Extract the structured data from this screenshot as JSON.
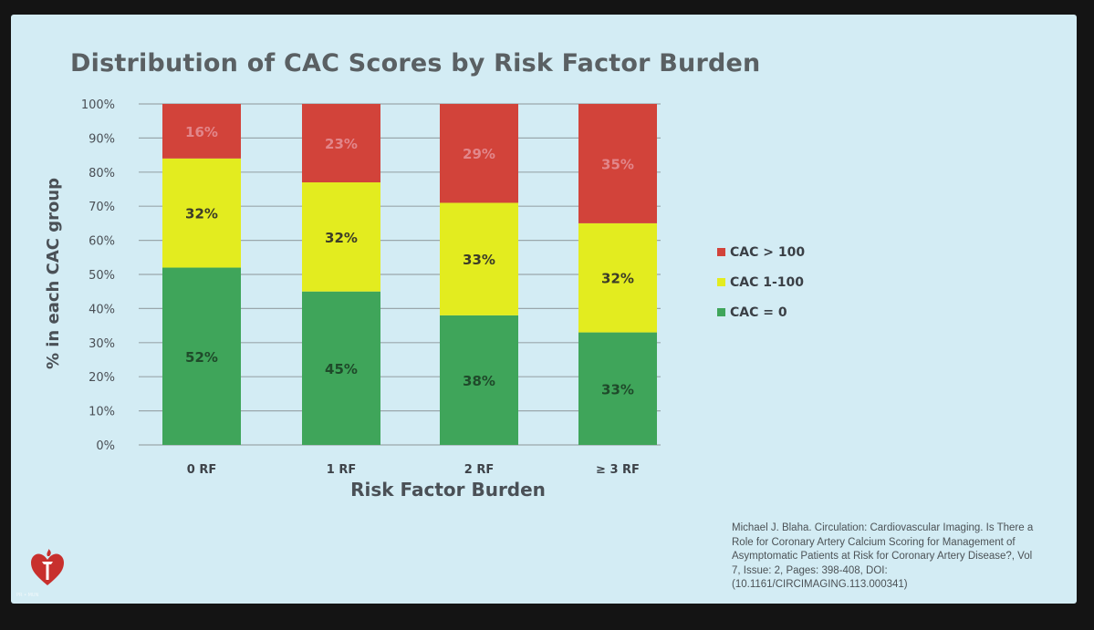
{
  "slide": {
    "citation": "Michael J. Blaha. Circulation: Cardiovascular Imaging. Is There a\nRole for Coronary Artery Calcium Scoring for Management of\nAsymptomatic Patients at Risk for Coronary Artery Disease?, Vol\n7, Issue: 2, Pages: 398-408, DOI:\n(10.1161/CIRCIMAGING.113.000341)",
    "logo_icon": "heart-torch-icon",
    "tiny_mark": "PR • MUN"
  },
  "chart_data": {
    "type": "bar",
    "stacked": true,
    "title": "Distribution of CAC Scores by Risk Factor Burden",
    "xlabel": "Risk Factor Burden",
    "ylabel": "% in each CAC group",
    "ylim": [
      0,
      100
    ],
    "yticks": [
      "0%",
      "10%",
      "20%",
      "30%",
      "40%",
      "50%",
      "60%",
      "70%",
      "80%",
      "90%",
      "100%"
    ],
    "categories": [
      "0 RF",
      "1 RF",
      "2 RF",
      "≥ 3 RF"
    ],
    "series": [
      {
        "name": "CAC = 0",
        "color": "#3fa55a",
        "label_color": "#1f4a2a",
        "values": [
          52,
          45,
          38,
          33
        ]
      },
      {
        "name": "CAC 1-100",
        "color": "#e3ec1f",
        "label_color": "#3c3c28",
        "values": [
          32,
          32,
          33,
          32
        ]
      },
      {
        "name": "CAC > 100",
        "color": "#d2433a",
        "label_color": "#e2868a",
        "values": [
          16,
          23,
          29,
          35
        ]
      }
    ],
    "legend_order": [
      "CAC > 100",
      "CAC 1-100",
      "CAC = 0"
    ],
    "legend_position": "right"
  }
}
